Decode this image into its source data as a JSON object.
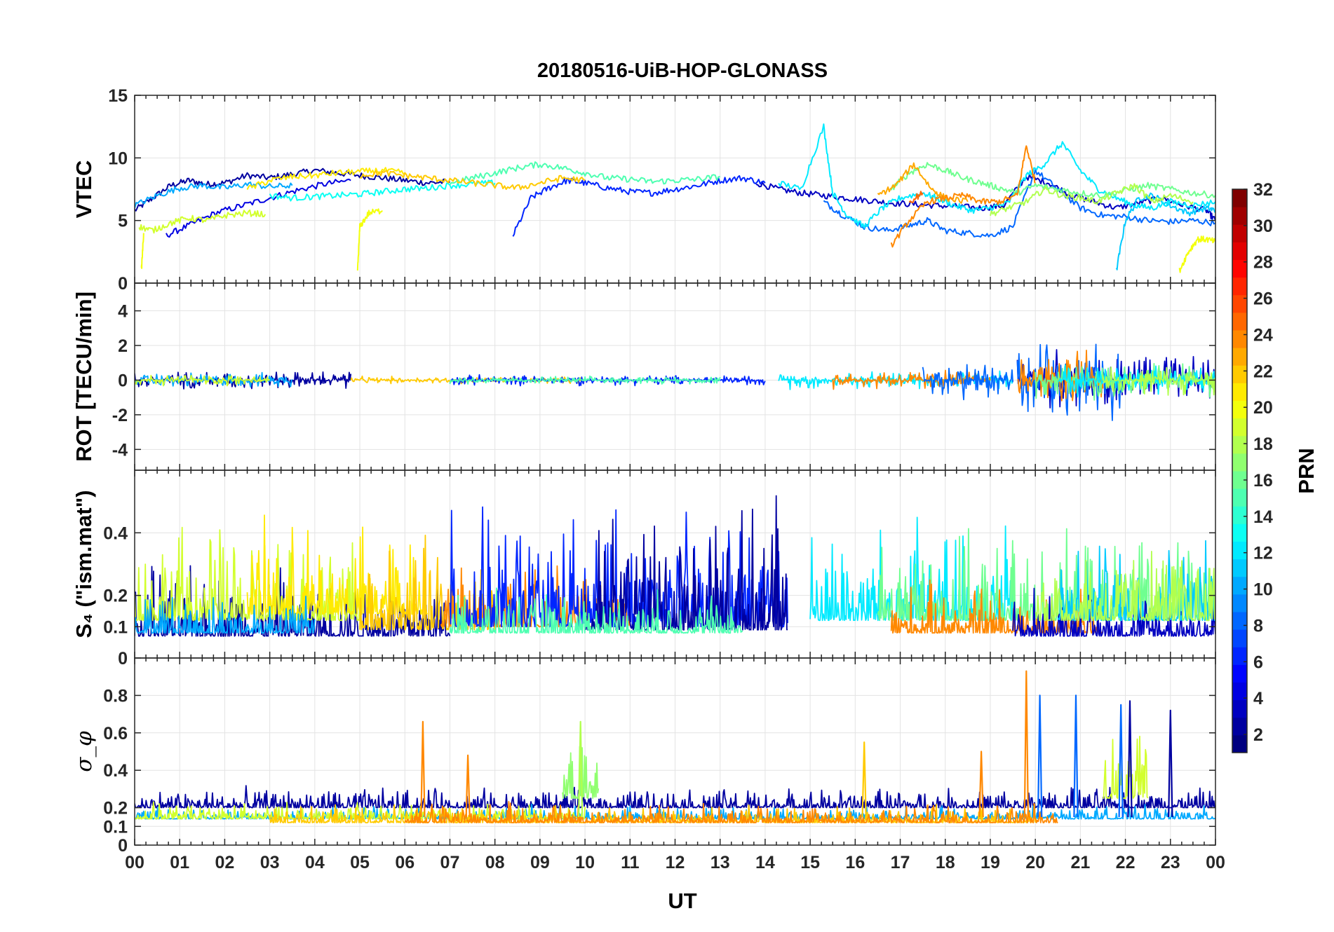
{
  "chart_data": [
    {
      "type": "line",
      "title": "20180516-UiB-HOP-GLONASS",
      "ylabel": "VTEC",
      "ylim": [
        0,
        15
      ],
      "yticks": [
        "0",
        "5",
        "10",
        "15"
      ],
      "xlim": [
        0,
        24
      ],
      "xticks": [
        "00",
        "01",
        "02",
        "03",
        "04",
        "05",
        "06",
        "07",
        "08",
        "09",
        "10",
        "11",
        "12",
        "13",
        "14",
        "15",
        "16",
        "17",
        "18",
        "19",
        "20",
        "21",
        "22",
        "23",
        "00"
      ],
      "grid": true,
      "series": [
        {
          "prn": 2,
          "x": [
            0.0,
            0.4,
            0.8,
            1.2,
            1.6,
            2.0,
            2.5,
            3.0,
            3.5,
            4.0,
            4.5,
            5.0,
            5.5,
            6.0,
            6.5,
            7.0
          ],
          "y": [
            5.8,
            6.8,
            7.8,
            8.2,
            7.9,
            8.0,
            8.6,
            8.4,
            8.7,
            9.0,
            8.8,
            8.6,
            8.4,
            8.2,
            8.0,
            8.1
          ]
        },
        {
          "prn": 4,
          "x": [
            0.7,
            1.2,
            1.8,
            2.4,
            3.0,
            3.6,
            4.2,
            4.8
          ],
          "y": [
            3.8,
            4.6,
            5.6,
            6.2,
            6.8,
            7.4,
            7.9,
            8.2
          ]
        },
        {
          "prn": 3,
          "x": [
            13.8,
            14.3,
            14.8,
            15.3,
            15.8,
            16.3,
            16.8,
            17.3,
            17.8,
            18.3,
            18.8,
            19.3,
            19.8,
            20.3,
            20.8,
            21.3,
            21.8,
            22.3,
            22.8,
            23.3,
            23.8,
            24.0
          ],
          "y": [
            8.0,
            7.5,
            7.2,
            7.0,
            6.8,
            6.6,
            6.4,
            6.3,
            6.2,
            6.1,
            6.0,
            6.2,
            8.5,
            8.0,
            7.0,
            6.5,
            6.0,
            6.4,
            6.8,
            6.2,
            5.8,
            5.0
          ]
        },
        {
          "prn": 6,
          "x": [
            8.4,
            8.8,
            9.2,
            9.6,
            10.0,
            10.5,
            11.0,
            11.5,
            12.0,
            12.5,
            13.0,
            13.5,
            14.0
          ],
          "y": [
            3.8,
            6.8,
            7.6,
            8.2,
            8.0,
            7.6,
            7.3,
            7.2,
            7.5,
            7.8,
            8.2,
            8.4,
            8.0
          ]
        },
        {
          "prn": 8,
          "x": [
            15.3,
            15.7,
            16.2,
            16.7,
            17.2,
            17.6,
            18.0,
            18.5,
            19.0,
            19.5,
            20.0,
            20.5,
            21.0,
            21.5,
            22.0,
            22.5,
            23.0,
            23.5,
            24.0
          ],
          "y": [
            6.5,
            5.5,
            4.5,
            4.2,
            4.6,
            5.0,
            4.2,
            4.0,
            3.8,
            4.5,
            9.0,
            7.5,
            6.0,
            5.4,
            5.3,
            5.0,
            4.9,
            5.0,
            4.8
          ]
        },
        {
          "prn": 10,
          "x": [
            0.0,
            0.5,
            1.0,
            1.5,
            2.0,
            2.5,
            3.0,
            3.5
          ],
          "y": [
            6.2,
            7.0,
            7.6,
            7.8,
            7.6,
            7.9,
            7.7,
            7.8
          ]
        },
        {
          "prn": 11,
          "x": [
            21.8,
            22.0,
            22.3,
            22.6,
            23.0,
            23.4,
            23.8,
            24.0
          ],
          "y": [
            1.0,
            5.0,
            6.8,
            7.0,
            6.2,
            5.6,
            6.0,
            5.8
          ]
        },
        {
          "prn": 12,
          "x": [
            14.3,
            14.8,
            15.3,
            15.5,
            15.8,
            16.2,
            16.6,
            17.0,
            17.5,
            17.8,
            18.2,
            18.6,
            19.0,
            19.4,
            19.8,
            20.2,
            20.6,
            21.0,
            21.4,
            21.8,
            22.2,
            22.6,
            23.0,
            23.5,
            24.0
          ],
          "y": [
            8.0,
            7.5,
            12.5,
            7.2,
            5.5,
            4.5,
            6.0,
            6.8,
            7.2,
            6.8,
            6.2,
            5.8,
            6.0,
            6.4,
            8.6,
            9.5,
            11.2,
            9.0,
            7.5,
            6.8,
            6.2,
            6.0,
            6.5,
            6.2,
            6.5
          ]
        },
        {
          "prn": 13,
          "x": [
            3.0,
            3.5,
            4.0,
            4.5,
            5.0,
            5.5,
            6.0,
            6.5,
            7.0,
            7.5,
            8.0
          ],
          "y": [
            7.0,
            6.8,
            6.9,
            7.0,
            7.1,
            7.3,
            7.5,
            7.6,
            7.8,
            7.9,
            8.0
          ]
        },
        {
          "prn": 15,
          "x": [
            7.0,
            7.5,
            8.0,
            8.5,
            9.0,
            9.5,
            10.0,
            10.5,
            11.0,
            11.5,
            12.0,
            12.5,
            13.0
          ],
          "y": [
            8.0,
            8.4,
            8.8,
            9.2,
            9.5,
            9.2,
            8.8,
            8.4,
            8.3,
            8.1,
            8.2,
            8.3,
            8.5
          ]
        },
        {
          "prn": 16,
          "x": [
            16.8,
            17.2,
            17.6,
            18.0,
            18.4,
            18.8,
            19.2,
            19.6,
            20.0,
            20.5,
            21.0,
            21.5,
            22.0,
            22.5,
            23.0,
            23.5,
            24.0
          ],
          "y": [
            7.5,
            8.8,
            9.5,
            9.0,
            8.4,
            8.0,
            7.6,
            7.2,
            7.8,
            7.5,
            7.2,
            7.0,
            7.4,
            7.8,
            7.5,
            7.2,
            7.0
          ]
        },
        {
          "prn": 18,
          "x": [
            19.0,
            19.4,
            19.8,
            20.2,
            20.6,
            21.0,
            21.4,
            21.8,
            22.2,
            22.6,
            23.0,
            23.5
          ],
          "y": [
            5.5,
            6.0,
            6.5,
            7.5,
            7.0,
            6.8,
            6.5,
            7.2,
            7.8,
            6.5,
            7.0,
            6.5
          ]
        },
        {
          "prn": 19,
          "x": [
            0.1,
            0.4,
            0.8,
            1.2,
            1.6,
            2.0,
            2.5,
            2.9
          ],
          "y": [
            4.5,
            4.2,
            4.8,
            5.2,
            5.0,
            5.4,
            5.6,
            5.5
          ]
        },
        {
          "prn": 20,
          "x": [
            0.15,
            0.2
          ],
          "y": [
            1.0,
            4.0
          ]
        },
        {
          "prn": 21,
          "x": [
            2.5,
            3.0,
            3.5,
            4.0,
            4.5,
            5.0,
            5.5,
            6.0
          ],
          "y": [
            7.5,
            8.2,
            8.5,
            8.6,
            8.8,
            8.9,
            9.0,
            8.8
          ]
        },
        {
          "prn": 20,
          "x": [
            4.95,
            5.0,
            5.2,
            5.5
          ],
          "y": [
            1.0,
            4.5,
            5.6,
            5.8
          ]
        },
        {
          "prn": 22,
          "x": [
            5.0,
            5.5,
            6.0,
            6.5,
            7.0,
            7.5,
            8.0,
            8.5,
            9.0,
            9.5,
            10.0
          ],
          "y": [
            8.6,
            8.8,
            8.6,
            8.4,
            8.2,
            8.0,
            7.8,
            7.6,
            8.0,
            8.4,
            8.2
          ]
        },
        {
          "prn": 23,
          "x": [
            16.5,
            16.9,
            17.3,
            17.7,
            18.0,
            18.5
          ],
          "y": [
            7.0,
            7.8,
            9.5,
            7.5,
            6.8,
            6.5
          ]
        },
        {
          "prn": 24,
          "x": [
            16.8,
            17.2,
            17.6,
            18.0,
            18.4,
            18.8,
            19.2,
            19.6,
            19.8,
            20.0
          ],
          "y": [
            3.0,
            5.0,
            6.5,
            6.8,
            7.0,
            6.5,
            6.5,
            7.0,
            11.0,
            8.0
          ]
        },
        {
          "prn": 25,
          "x": [
            17.2,
            17.5
          ],
          "y": [
            6.5,
            7.2
          ]
        },
        {
          "prn": 20,
          "x": [
            23.2,
            23.4,
            23.6,
            23.8,
            24.0
          ],
          "y": [
            1.0,
            2.5,
            3.5,
            3.5,
            3.3
          ]
        }
      ]
    },
    {
      "type": "line",
      "ylabel": "ROT [TECU/min]",
      "ylim": [
        -5.2,
        5.6
      ],
      "yticks": [
        "-4",
        "-2",
        "0",
        "2",
        "4"
      ],
      "xlim": [
        0,
        24
      ],
      "grid": true,
      "noise_segments": [
        {
          "prn": 2,
          "x": [
            0.0,
            4.8
          ],
          "amp": 0.6
        },
        {
          "prn": 10,
          "x": [
            0.0,
            3.5
          ],
          "amp": 0.5
        },
        {
          "prn": 19,
          "x": [
            0.0,
            3.0
          ],
          "amp": 0.4
        },
        {
          "prn": 22,
          "x": [
            4.8,
            10.0
          ],
          "amp": 0.25
        },
        {
          "prn": 6,
          "x": [
            7.0,
            14.0
          ],
          "amp": 0.35
        },
        {
          "prn": 15,
          "x": [
            7.0,
            13.0
          ],
          "amp": 0.25
        },
        {
          "prn": 12,
          "x": [
            14.3,
            19.5
          ],
          "amp": 0.6
        },
        {
          "prn": 24,
          "x": [
            15.5,
            19.0
          ],
          "amp": 0.7
        },
        {
          "prn": 8,
          "x": [
            17.5,
            19.5
          ],
          "amp": 1.4
        },
        {
          "prn": 3,
          "x": [
            19.6,
            24.0
          ],
          "amp": 1.8
        },
        {
          "prn": 8,
          "x": [
            19.6,
            22.0
          ],
          "amp": 2.5
        },
        {
          "prn": 24,
          "x": [
            19.6,
            21.5
          ],
          "amp": 1.8
        },
        {
          "prn": 16,
          "x": [
            20.0,
            24.0
          ],
          "amp": 1.2
        },
        {
          "prn": 12,
          "x": [
            20.5,
            24.0
          ],
          "amp": 1.0
        },
        {
          "prn": 18,
          "x": [
            21.5,
            24.0
          ],
          "amp": 1.0
        }
      ]
    },
    {
      "type": "line",
      "ylabel": "S₄ (\"ism.mat\")",
      "ylim": [
        0,
        0.6
      ],
      "yticks": [
        "0",
        "0.1",
        "0.2",
        "0.4"
      ],
      "xlim": [
        0,
        24
      ],
      "grid": true,
      "noise_segments": [
        {
          "prn": 2,
          "x": [
            0.0,
            7.0
          ],
          "base": 0.07,
          "amp": 0.25
        },
        {
          "prn": 19,
          "x": [
            0.0,
            5.0
          ],
          "base": 0.12,
          "amp": 0.35
        },
        {
          "prn": 21,
          "x": [
            2.5,
            6.5
          ],
          "base": 0.14,
          "amp": 0.32
        },
        {
          "prn": 10,
          "x": [
            0.0,
            4.0
          ],
          "base": 0.08,
          "amp": 0.15
        },
        {
          "prn": 22,
          "x": [
            5.0,
            8.0
          ],
          "base": 0.09,
          "amp": 0.35
        },
        {
          "prn": 24,
          "x": [
            6.8,
            11.0
          ],
          "base": 0.1,
          "amp": 0.22
        },
        {
          "prn": 6,
          "x": [
            7.0,
            14.5
          ],
          "base": 0.1,
          "amp": 0.42
        },
        {
          "prn": 2,
          "x": [
            10.0,
            14.5
          ],
          "base": 0.09,
          "amp": 0.45
        },
        {
          "prn": 15,
          "x": [
            7.0,
            13.5
          ],
          "base": 0.08,
          "amp": 0.15
        },
        {
          "prn": 12,
          "x": [
            15.0,
            19.5
          ],
          "base": 0.12,
          "amp": 0.35
        },
        {
          "prn": 16,
          "x": [
            16.5,
            24.0
          ],
          "base": 0.12,
          "amp": 0.3
        },
        {
          "prn": 24,
          "x": [
            16.8,
            21.5
          ],
          "base": 0.08,
          "amp": 0.18
        },
        {
          "prn": 3,
          "x": [
            19.5,
            24.0
          ],
          "base": 0.07,
          "amp": 0.18
        },
        {
          "prn": 11,
          "x": [
            20.5,
            24.0
          ],
          "base": 0.12,
          "amp": 0.3
        },
        {
          "prn": 18,
          "x": [
            20.0,
            24.0
          ],
          "base": 0.12,
          "amp": 0.3
        }
      ]
    },
    {
      "type": "line",
      "ylabel": "σ_φ",
      "ylim": [
        0,
        1.0
      ],
      "yticks": [
        "0",
        "0.1",
        "0.2",
        "0.4",
        "0.6",
        "0.8"
      ],
      "xlim": [
        0,
        24
      ],
      "xlabel": "UT",
      "grid": true,
      "noise_segments": [
        {
          "prn": 2,
          "x": [
            0.0,
            24.0
          ],
          "base": 0.2,
          "amp": 0.12
        },
        {
          "prn": 10,
          "x": [
            0.0,
            24.0
          ],
          "base": 0.14,
          "amp": 0.08
        },
        {
          "prn": 19,
          "x": [
            0.0,
            10.0
          ],
          "base": 0.14,
          "amp": 0.1
        },
        {
          "prn": 22,
          "x": [
            3.0,
            20.0
          ],
          "base": 0.12,
          "amp": 0.1
        },
        {
          "prn": 17,
          "x": [
            9.5,
            10.3
          ],
          "base": 0.25,
          "amp": 0.35
        },
        {
          "prn": 19,
          "x": [
            21.5,
            22.5
          ],
          "base": 0.25,
          "amp": 0.4
        },
        {
          "prn": 24,
          "x": [
            6.0,
            20.5
          ],
          "base": 0.12,
          "amp": 0.12
        }
      ],
      "spikes": [
        {
          "prn": 24,
          "x": 6.4,
          "y": 0.66
        },
        {
          "prn": 24,
          "x": 7.4,
          "y": 0.48
        },
        {
          "prn": 22,
          "x": 16.2,
          "y": 0.55
        },
        {
          "prn": 24,
          "x": 18.8,
          "y": 0.5
        },
        {
          "prn": 24,
          "x": 19.8,
          "y": 0.93
        },
        {
          "prn": 8,
          "x": 20.1,
          "y": 0.8
        },
        {
          "prn": 8,
          "x": 20.9,
          "y": 0.8
        },
        {
          "prn": 8,
          "x": 21.9,
          "y": 0.75
        },
        {
          "prn": 2,
          "x": 22.1,
          "y": 0.77
        },
        {
          "prn": 2,
          "x": 23.0,
          "y": 0.72
        },
        {
          "prn": 18,
          "x": 9.9,
          "y": 0.66
        }
      ]
    }
  ],
  "colorbar": {
    "label": "PRN",
    "range": [
      1,
      32
    ],
    "ticks": [
      "2",
      "4",
      "6",
      "8",
      "10",
      "12",
      "14",
      "16",
      "18",
      "20",
      "22",
      "24",
      "26",
      "28",
      "30",
      "32"
    ],
    "colormap": "jet"
  }
}
